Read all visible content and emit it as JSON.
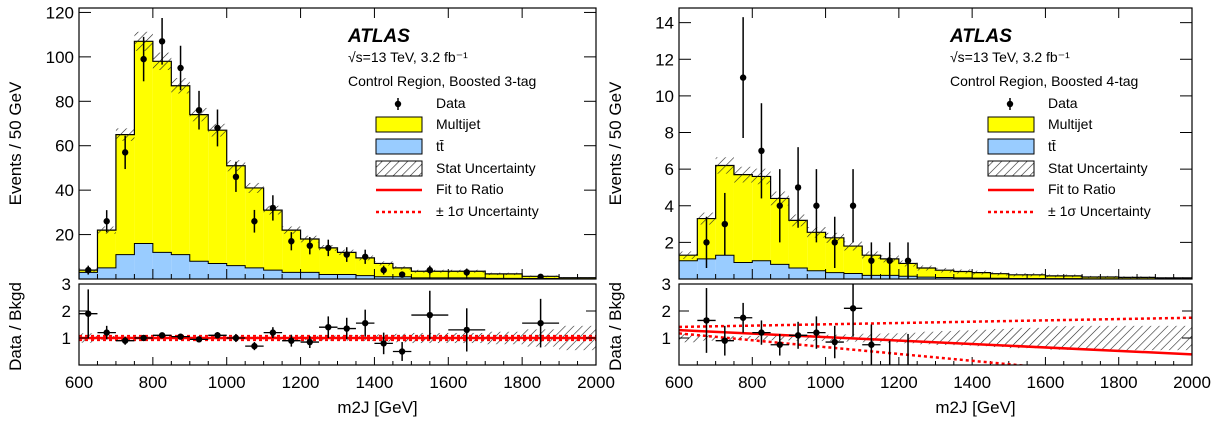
{
  "chart_data": [
    {
      "type": "bar",
      "atlas": "ATLAS",
      "energy": "√s=13 TeV, 3.2 fb⁻¹",
      "region": "Control Region, Boosted 3-tag",
      "ylabel": "Events / 50 GeV",
      "ratio_ylabel": "Data / Bkgd",
      "xlabel": "m2J [GeV]",
      "xlim": [
        600,
        2000
      ],
      "ylim": [
        0,
        122
      ],
      "ratio_ylim": [
        0,
        3
      ],
      "x_ticks": [
        600,
        800,
        1000,
        1200,
        1400,
        1600,
        1800,
        2000
      ],
      "y_ticks": [
        20,
        40,
        60,
        80,
        100,
        120
      ],
      "ratio_ticks": [
        1,
        2,
        3
      ],
      "legend": [
        "Data",
        "Multijet",
        "tt̄",
        "Stat Uncertainty",
        "Fit to Ratio",
        "± 1σ Uncertainty"
      ],
      "bin_edges": [
        600,
        650,
        700,
        750,
        800,
        850,
        900,
        950,
        1000,
        1050,
        1100,
        1150,
        1200,
        1250,
        1300,
        1350,
        1400,
        1450,
        1500,
        1600,
        1700,
        1800,
        1900,
        2000
      ],
      "series": [
        {
          "name": "Multijet",
          "values": [
            1,
            17,
            54,
            91,
            86,
            76,
            66,
            60,
            45,
            36,
            27,
            19,
            15,
            12,
            10,
            8,
            6,
            4,
            3,
            3,
            2,
            1,
            0.5
          ]
        },
        {
          "name": "tt̄",
          "values": [
            3,
            5,
            11,
            16,
            12,
            11,
            8,
            7,
            6,
            5,
            4,
            3,
            3,
            2,
            2,
            1.5,
            1,
            1,
            0.5,
            0.5,
            0.3,
            0.2,
            0.1
          ]
        }
      ],
      "data_x": [
        625,
        675,
        725,
        775,
        825,
        875,
        925,
        975,
        1025,
        1075,
        1125,
        1175,
        1225,
        1275,
        1325,
        1375,
        1425,
        1475,
        1550,
        1650,
        1850
      ],
      "data_y": [
        4,
        26,
        57,
        99,
        107,
        95,
        76,
        68,
        46,
        26,
        32,
        17,
        15,
        14,
        11,
        10,
        4,
        2,
        4,
        3,
        1
      ],
      "data_err": [
        2,
        5,
        7.5,
        10,
        10.5,
        10,
        8.7,
        8.3,
        6.8,
        5.1,
        5.7,
        4.1,
        3.9,
        3.7,
        3.3,
        3.2,
        2,
        1.4,
        2,
        1.7,
        1
      ],
      "ratio_y": [
        1.9,
        1.2,
        0.9,
        1.0,
        1.1,
        1.05,
        0.95,
        1.1,
        1.0,
        0.7,
        1.2,
        0.9,
        0.85,
        1.4,
        1.35,
        1.55,
        0.8,
        0.5,
        1.85,
        1.3,
        1.55
      ],
      "ratio_err": [
        0.9,
        0.25,
        0.15,
        0.1,
        0.1,
        0.1,
        0.1,
        0.12,
        0.15,
        0.15,
        0.2,
        0.22,
        0.22,
        0.4,
        0.4,
        0.5,
        0.4,
        0.35,
        0.9,
        0.8,
        0.9
      ],
      "fit": {
        "intercept": 1.0,
        "slope_per_tev": 0.0,
        "band": 0.08
      }
    },
    {
      "type": "bar",
      "atlas": "ATLAS",
      "energy": "√s=13 TeV, 3.2 fb⁻¹",
      "region": "Control Region, Boosted 4-tag",
      "ylabel": "Events / 50 GeV",
      "ratio_ylabel": "Data / Bkgd",
      "xlabel": "m2J [GeV]",
      "xlim": [
        600,
        2000
      ],
      "ylim": [
        0,
        14.8
      ],
      "ratio_ylim": [
        0,
        3
      ],
      "x_ticks": [
        600,
        800,
        1000,
        1200,
        1400,
        1600,
        1800,
        2000
      ],
      "y_ticks": [
        2,
        4,
        6,
        8,
        10,
        12,
        14
      ],
      "ratio_ticks": [
        1,
        2,
        3
      ],
      "legend": [
        "Data",
        "Multijet",
        "tt̄",
        "Stat Uncertainty",
        "Fit to Ratio",
        "± 1σ Uncertainty"
      ],
      "bin_edges": [
        600,
        650,
        700,
        750,
        800,
        850,
        900,
        950,
        1000,
        1050,
        1100,
        1150,
        1200,
        1250,
        1300,
        1350,
        1400,
        1450,
        1500,
        1600,
        1700,
        1800,
        1900,
        2000
      ],
      "series": [
        {
          "name": "Multijet",
          "values": [
            0.3,
            2.2,
            4.9,
            4.8,
            4.6,
            3.6,
            2.6,
            2.1,
            1.9,
            1.5,
            1.1,
            0.9,
            0.7,
            0.5,
            0.4,
            0.35,
            0.3,
            0.25,
            0.2,
            0.15,
            0.1,
            0.08,
            0.05
          ]
        },
        {
          "name": "tt̄",
          "values": [
            1,
            1.1,
            1.3,
            0.9,
            1.0,
            0.8,
            0.6,
            0.45,
            0.35,
            0.3,
            0.2,
            0.2,
            0.15,
            0.1,
            0.08,
            0.06,
            0.05,
            0.04,
            0.03,
            0.02,
            0.01,
            0.01,
            0.01
          ]
        }
      ],
      "data_x": [
        675,
        725,
        775,
        825,
        875,
        925,
        975,
        1025,
        1075,
        1125,
        1175,
        1225
      ],
      "data_y": [
        2,
        3,
        11,
        7,
        4,
        5,
        4,
        2,
        4,
        1,
        1,
        1
      ],
      "data_err": [
        1.4,
        1.7,
        3.3,
        2.6,
        2,
        2.2,
        2,
        1.4,
        2,
        1,
        1,
        1
      ],
      "ratio_y": [
        1.65,
        0.9,
        1.75,
        1.2,
        0.75,
        1.1,
        1.2,
        0.85,
        2.1,
        0.75,
        0,
        0
      ],
      "ratio_err": [
        1.2,
        0.55,
        0.55,
        0.45,
        0.4,
        0.5,
        0.6,
        0.6,
        1.05,
        0.75,
        0.9,
        1.15
      ],
      "fit": {
        "intercept": 1.29,
        "slope_per_tev": -0.64,
        "band_start": 0.12,
        "band_slope": 0.35
      },
      "fit_uncertainty": {
        "upper_at_2000": 1.75,
        "lower_at_2000": 0.3
      }
    }
  ]
}
